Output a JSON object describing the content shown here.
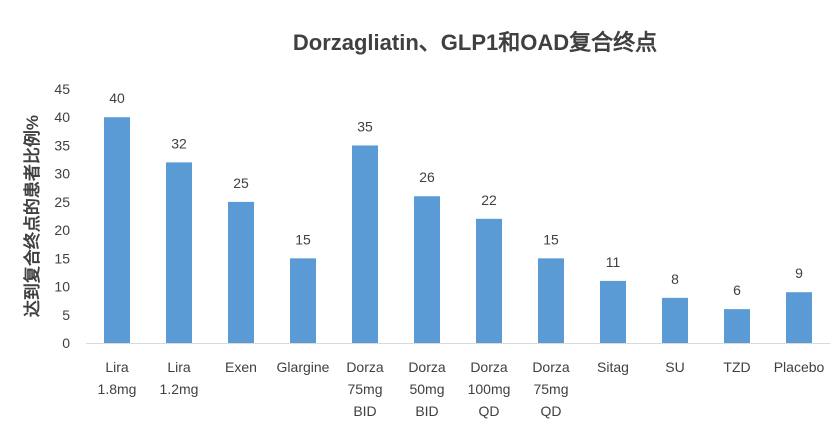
{
  "chart_data": {
    "type": "bar",
    "title": "Dorzagliatin、GLP1和OAD复合终点",
    "xlabel": "",
    "ylabel": "达到复合终点的患者比例%",
    "ylim": [
      0,
      45
    ],
    "yticks": [
      0,
      5,
      10,
      15,
      20,
      25,
      30,
      35,
      40,
      45
    ],
    "grid": false,
    "legend": "none",
    "categories": [
      [
        "Lira",
        "1.8mg"
      ],
      [
        "Lira",
        "1.2mg"
      ],
      [
        "Exen"
      ],
      [
        "Glargine"
      ],
      [
        "Dorza",
        "75mg",
        "BID"
      ],
      [
        "Dorza",
        "50mg",
        "BID"
      ],
      [
        "Dorza",
        "100mg",
        "QD"
      ],
      [
        "Dorza",
        "75mg",
        "QD"
      ],
      [
        "Sitag"
      ],
      [
        "SU"
      ],
      [
        "TZD"
      ],
      [
        "Placebo"
      ]
    ],
    "values": [
      40,
      32,
      25,
      15,
      35,
      26,
      22,
      15,
      11,
      8,
      6,
      9
    ],
    "bar_color": "#5b9bd5"
  }
}
